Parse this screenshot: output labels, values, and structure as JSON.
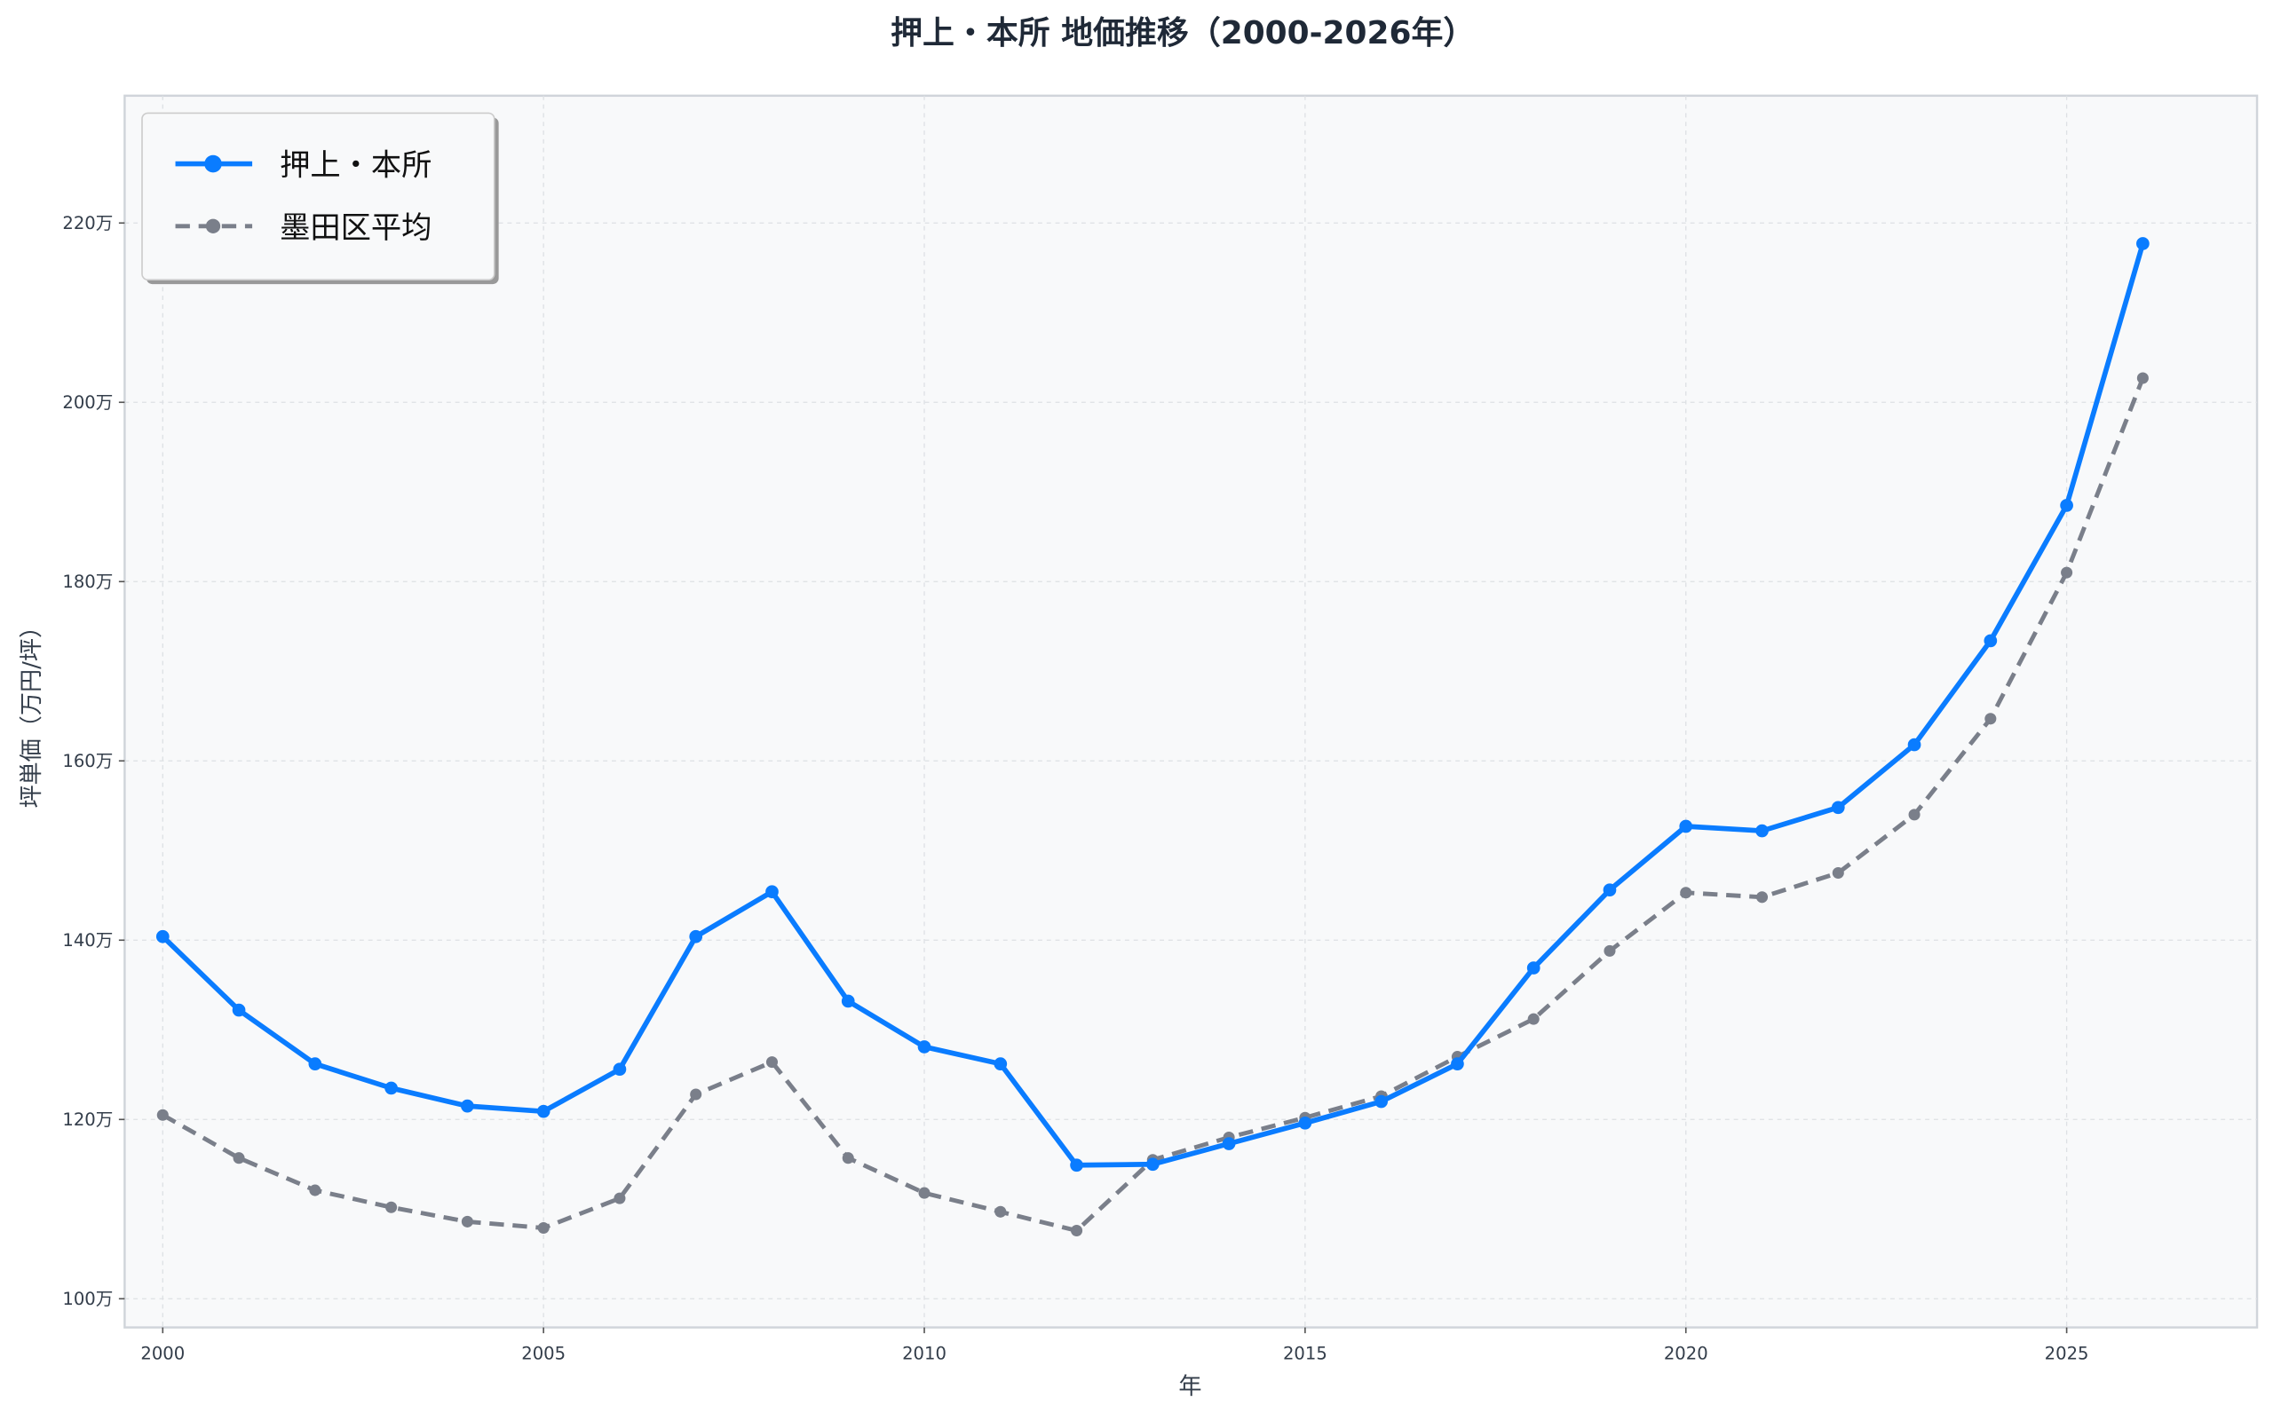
{
  "chart_data": {
    "type": "line",
    "title": "押上・本所 地価推移（2000-2026年）",
    "xlabel": "年",
    "ylabel": "坪単価（万円/坪）",
    "xlim": [
      1999.5,
      2027.5
    ],
    "ylim": [
      96.8,
      234.2
    ],
    "x_ticks": [
      2000,
      2005,
      2010,
      2015,
      2020,
      2025
    ],
    "x_tick_labels": [
      "2000",
      "2005",
      "2010",
      "2015",
      "2020",
      "2025"
    ],
    "y_ticks": [
      100,
      120,
      140,
      160,
      180,
      200,
      220
    ],
    "y_tick_labels": [
      "100万",
      "120万",
      "140万",
      "160万",
      "180万",
      "200万",
      "220万"
    ],
    "grid": true,
    "legend_position": "top-left",
    "x": [
      2000,
      2001,
      2002,
      2003,
      2004,
      2005,
      2006,
      2007,
      2008,
      2009,
      2010,
      2011,
      2012,
      2013,
      2014,
      2015,
      2016,
      2017,
      2018,
      2019,
      2020,
      2021,
      2022,
      2023,
      2024,
      2025,
      2026
    ],
    "series": [
      {
        "name": "押上・本所",
        "color": "#0a7cff",
        "style": "solid",
        "values": [
          140.4,
          132.2,
          126.2,
          123.5,
          121.5,
          120.9,
          125.6,
          140.4,
          145.4,
          133.2,
          128.1,
          126.2,
          114.9,
          115.0,
          117.3,
          119.6,
          122.0,
          126.2,
          136.9,
          145.6,
          152.7,
          152.2,
          154.8,
          161.8,
          173.4,
          188.5,
          217.7
        ]
      },
      {
        "name": "墨田区平均",
        "color": "#7a7f8a",
        "style": "dashed",
        "values": [
          120.5,
          115.7,
          112.1,
          110.2,
          108.6,
          107.9,
          111.2,
          122.8,
          126.4,
          115.7,
          111.8,
          109.7,
          107.6,
          115.5,
          118.0,
          120.2,
          122.6,
          127.0,
          131.2,
          138.8,
          145.3,
          144.8,
          147.5,
          154.0,
          164.7,
          181.0,
          202.7
        ]
      }
    ]
  }
}
